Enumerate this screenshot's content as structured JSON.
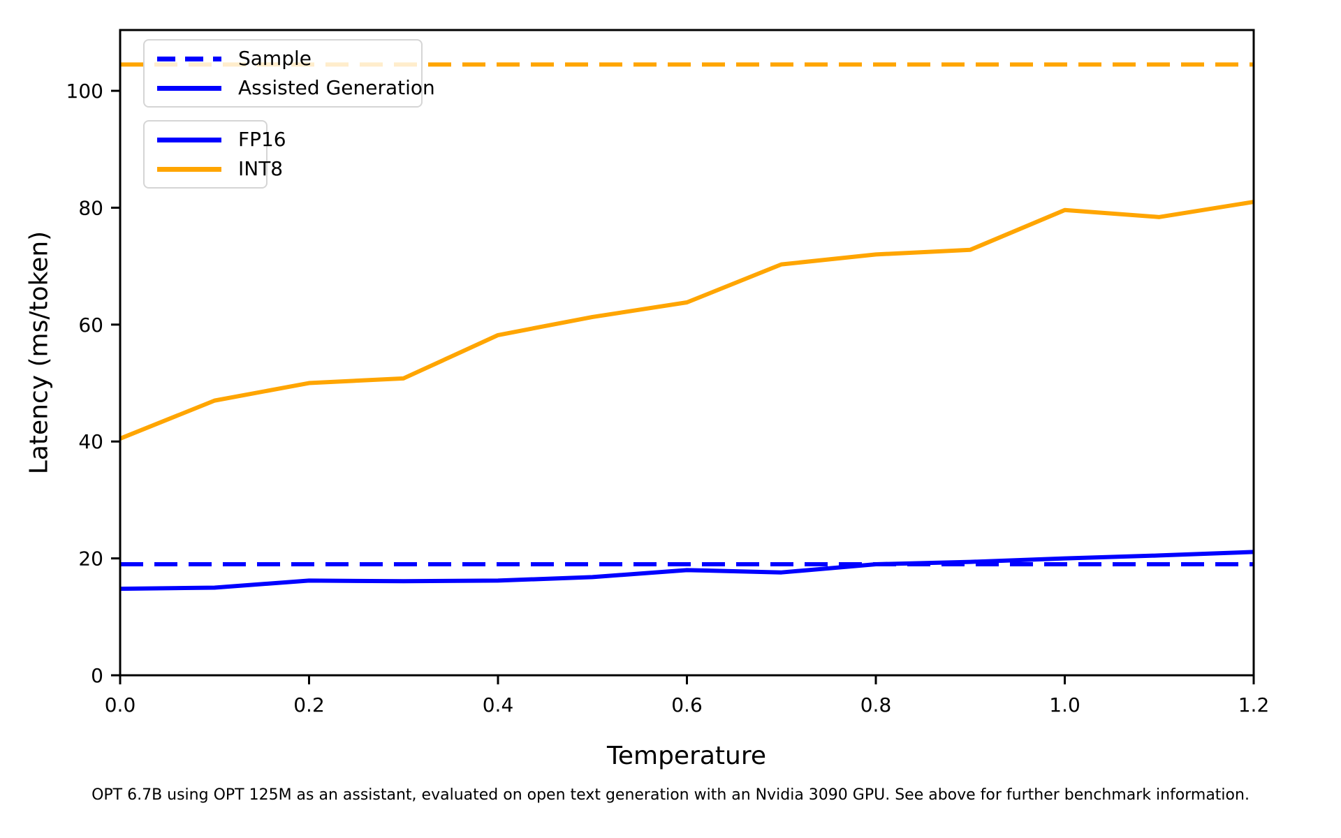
{
  "figure": {
    "caption": "OPT 6.7B using OPT 125M as an assistant, evaluated on open text generation with an Nvidia 3090 GPU. See above for further benchmark information."
  },
  "colors": {
    "fp16": "#0000ff",
    "int8": "#ffa500",
    "axis": "#000000",
    "legend_edge": "#d5d5d5"
  },
  "chart_data": {
    "type": "line",
    "title": "",
    "xlabel": "Temperature",
    "ylabel": "Latency (ms/token)",
    "xlim": [
      0.0,
      1.2
    ],
    "ylim": [
      0,
      110.4
    ],
    "xticks": [
      0.0,
      0.2,
      0.4,
      0.6,
      0.8,
      1.0,
      1.2
    ],
    "yticks": [
      0,
      20,
      40,
      60,
      80,
      100
    ],
    "grid": false,
    "x": [
      0.0,
      0.1,
      0.2,
      0.3,
      0.4,
      0.5,
      0.6,
      0.7,
      0.8,
      0.9,
      1.0,
      1.1,
      1.2
    ],
    "series": [
      {
        "name": "INT8 Sample",
        "color": "#ffa500",
        "style": "dashed",
        "constant": 104.5
      },
      {
        "name": "FP16 Sample",
        "color": "#0000ff",
        "style": "dashed",
        "constant": 19.0
      },
      {
        "name": "INT8 Assisted Generation",
        "color": "#ffa500",
        "style": "solid",
        "values": [
          40.5,
          47.0,
          50.0,
          50.8,
          58.2,
          61.3,
          63.8,
          70.3,
          72.0,
          72.8,
          79.6,
          78.4,
          81.0
        ]
      },
      {
        "name": "FP16 Assisted Generation",
        "color": "#0000ff",
        "style": "solid",
        "values": [
          14.8,
          15.0,
          16.2,
          16.1,
          16.2,
          16.8,
          18.0,
          17.6,
          19.0,
          19.4,
          20.0,
          20.5,
          21.1
        ]
      }
    ],
    "legend_style": {
      "entries": [
        {
          "label": "Sample",
          "color": "#0000ff",
          "dashed": true
        },
        {
          "label": "Assisted Generation",
          "color": "#0000ff",
          "dashed": false
        }
      ]
    },
    "legend_precision": {
      "entries": [
        {
          "label": "FP16",
          "color": "#0000ff",
          "dashed": false
        },
        {
          "label": "INT8",
          "color": "#ffa500",
          "dashed": false
        }
      ]
    }
  }
}
